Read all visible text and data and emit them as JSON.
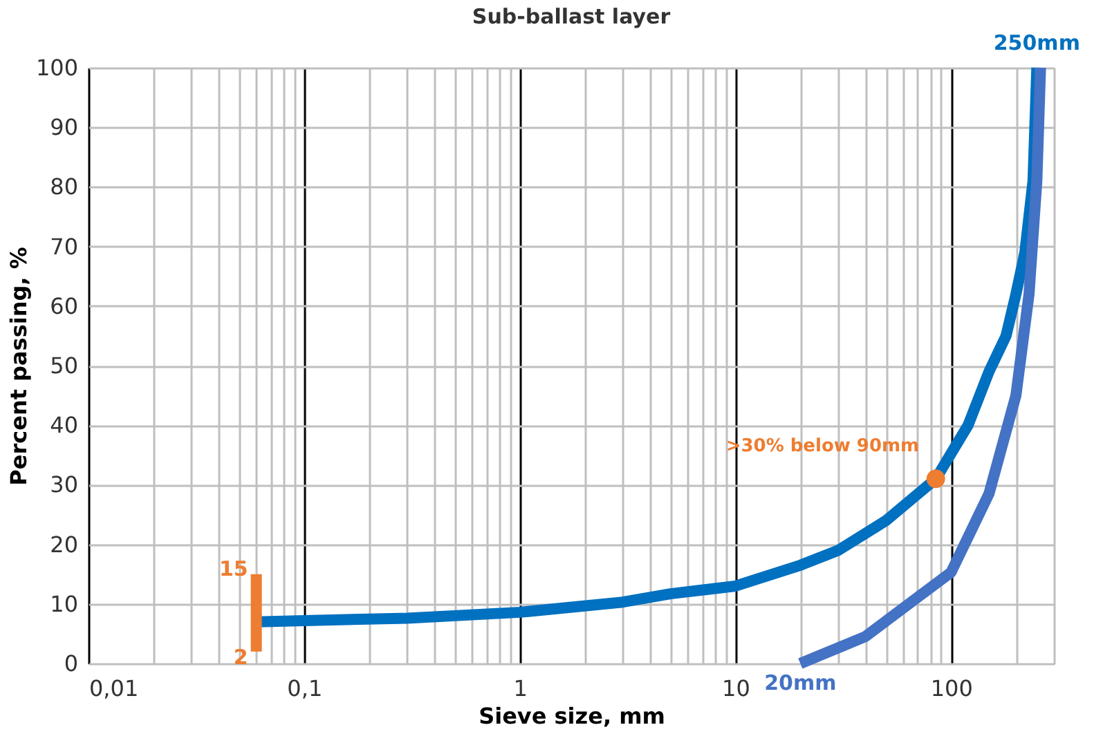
{
  "chart_data": {
    "type": "line",
    "title": "Sub-ballast layer",
    "xlabel": "Sieve size, mm",
    "ylabel": "Percent passing, %",
    "log": "x",
    "xlim": [
      0.01,
      300
    ],
    "ylim": [
      0,
      100
    ],
    "grid": true,
    "marker": "none",
    "line_style": "solid",
    "xticks": [
      {
        "value": 0.01,
        "label": "0,01"
      },
      {
        "value": 0.02,
        "label": null
      },
      {
        "value": 0.03,
        "label": null
      },
      {
        "value": 0.04,
        "label": null
      },
      {
        "value": 0.05,
        "label": null
      },
      {
        "value": 0.06,
        "label": null
      },
      {
        "value": 0.07,
        "label": null
      },
      {
        "value": 0.08,
        "label": null
      },
      {
        "value": 0.09,
        "label": null
      },
      {
        "value": 0.1,
        "label": "0,1"
      },
      {
        "value": 0.2,
        "label": null
      },
      {
        "value": 0.3,
        "label": null
      },
      {
        "value": 0.4,
        "label": null
      },
      {
        "value": 0.5,
        "label": null
      },
      {
        "value": 0.6,
        "label": null
      },
      {
        "value": 0.7,
        "label": null
      },
      {
        "value": 0.8,
        "label": null
      },
      {
        "value": 0.9,
        "label": null
      },
      {
        "value": 1,
        "label": "1"
      },
      {
        "value": 2,
        "label": null
      },
      {
        "value": 3,
        "label": null
      },
      {
        "value": 4,
        "label": null
      },
      {
        "value": 5,
        "label": null
      },
      {
        "value": 6,
        "label": null
      },
      {
        "value": 7,
        "label": null
      },
      {
        "value": 8,
        "label": null
      },
      {
        "value": 9,
        "label": null
      },
      {
        "value": 10,
        "label": "10"
      },
      {
        "value": 20,
        "label": null
      },
      {
        "value": 30,
        "label": null
      },
      {
        "value": 40,
        "label": null
      },
      {
        "value": 50,
        "label": null
      },
      {
        "value": 60,
        "label": null
      },
      {
        "value": 70,
        "label": null
      },
      {
        "value": 80,
        "label": null
      },
      {
        "value": 90,
        "label": null
      },
      {
        "value": 100,
        "label": "100"
      },
      {
        "value": 200,
        "label": null
      },
      {
        "value": 300,
        "label": null
      }
    ],
    "yticks": [
      0,
      10,
      20,
      30,
      40,
      50,
      60,
      70,
      80,
      90,
      100
    ],
    "series": [
      {
        "type": "line",
        "color": "#0070c0",
        "x": [
          0.06,
          0.1,
          0.3,
          1,
          3,
          5,
          10,
          20,
          30,
          50,
          85,
          120,
          150,
          180,
          200,
          220,
          240,
          250
        ],
        "values": [
          7,
          7.2,
          7.6,
          8.6,
          10.3,
          11.7,
          13,
          16.5,
          19,
          24,
          31,
          40,
          49,
          55,
          62,
          69,
          81,
          100
        ]
      },
      {
        "type": "line",
        "color": "#4472c4",
        "x": [
          20,
          40,
          60,
          100,
          150,
          200,
          230,
          250,
          260
        ],
        "values": [
          0,
          4.5,
          9.3,
          15.3,
          28.5,
          45,
          62,
          81,
          100
        ]
      },
      {
        "type": "line",
        "color": "#ed7d31",
        "x": [
          0.06,
          0.06
        ],
        "values": [
          2,
          15
        ]
      },
      {
        "type": "scatter",
        "color": "#ed7d31",
        "marker": "circle",
        "x": [
          85
        ],
        "values": [
          31
        ]
      }
    ],
    "annotations": [
      {
        "text": "15",
        "x": 0.06,
        "y": 15
      },
      {
        "text": "2",
        "x": 0.06,
        "y": 2
      },
      {
        "text": ">30% below 90mm",
        "x": 85,
        "y": 31
      },
      {
        "text": "250mm",
        "x": 250,
        "y": 100
      },
      {
        "text": "20mm",
        "x": 20,
        "y": 0
      }
    ]
  }
}
